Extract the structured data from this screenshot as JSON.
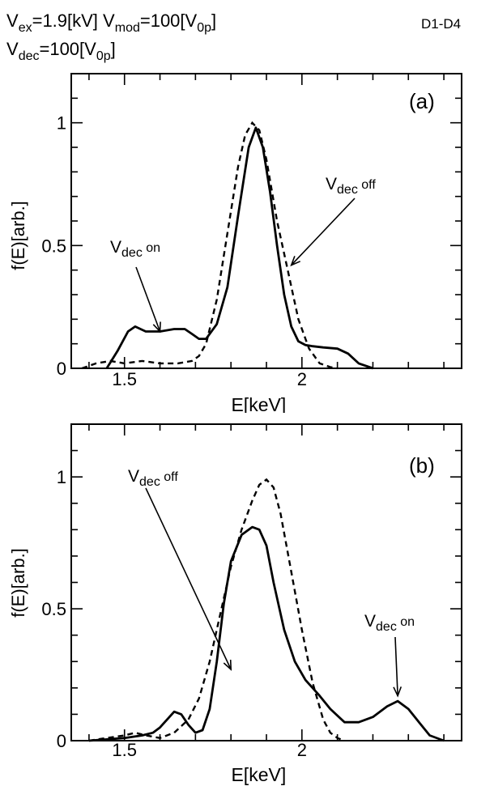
{
  "header": {
    "line1": [
      {
        "t": "V",
        "sub": "ex",
        "rest": "=1.9[kV] "
      },
      {
        "t": "V",
        "sub": "mod",
        "rest": "=100[V"
      },
      {
        "t": "",
        "sub": "0p",
        "rest": "]"
      }
    ],
    "line2": [
      {
        "t": "V",
        "sub": "dec",
        "rest": "=100[V"
      },
      {
        "t": "",
        "sub": "0p",
        "rest": "]"
      }
    ],
    "tag": "D1-D4"
  },
  "chart_data": [
    {
      "type": "line",
      "panel_label": "(a)",
      "xlabel": "E[keV]",
      "ylabel": "f(E)[arb.]",
      "xlim": [
        1.35,
        2.45
      ],
      "ylim": [
        0,
        1.2
      ],
      "xticks": [
        1.5,
        2
      ],
      "yticks": [
        0,
        0.5,
        1
      ],
      "ytick_labels": [
        "0",
        "0.5",
        "1"
      ],
      "series": [
        {
          "name": "Vdec on",
          "style": "solid",
          "x": [
            1.45,
            1.48,
            1.51,
            1.53,
            1.56,
            1.6,
            1.64,
            1.67,
            1.69,
            1.71,
            1.73,
            1.76,
            1.79,
            1.82,
            1.85,
            1.87,
            1.89,
            1.91,
            1.93,
            1.95,
            1.97,
            1.99,
            2.01,
            2.03,
            2.06,
            2.1,
            2.13,
            2.16,
            2.2
          ],
          "y": [
            0,
            0.07,
            0.15,
            0.17,
            0.15,
            0.15,
            0.16,
            0.16,
            0.14,
            0.12,
            0.12,
            0.18,
            0.33,
            0.62,
            0.9,
            0.98,
            0.9,
            0.72,
            0.5,
            0.3,
            0.17,
            0.11,
            0.095,
            0.09,
            0.085,
            0.08,
            0.06,
            0.02,
            0
          ]
        },
        {
          "name": "Vdec off",
          "style": "dashed",
          "x": [
            1.38,
            1.42,
            1.46,
            1.5,
            1.55,
            1.6,
            1.65,
            1.69,
            1.71,
            1.73,
            1.76,
            1.79,
            1.82,
            1.84,
            1.86,
            1.88,
            1.9,
            1.93,
            1.96,
            1.99,
            2.02,
            2.05,
            2.08,
            2.1
          ],
          "y": [
            0,
            0.02,
            0.03,
            0.02,
            0.03,
            0.02,
            0.02,
            0.03,
            0.05,
            0.1,
            0.28,
            0.55,
            0.82,
            0.95,
            1.0,
            0.97,
            0.85,
            0.6,
            0.4,
            0.2,
            0.08,
            0.02,
            0.005,
            0
          ]
        }
      ],
      "annotations": [
        {
          "base": "V",
          "sub": "dec",
          "suffix": " on",
          "target": [
            1.6,
            0.15
          ]
        },
        {
          "base": "V",
          "sub": "dec",
          "suffix": " off",
          "target": [
            1.97,
            0.42
          ]
        }
      ]
    },
    {
      "type": "line",
      "panel_label": "(b)",
      "xlabel": "E[keV]",
      "ylabel": "f(E)[arb.]",
      "xlim": [
        1.35,
        2.45
      ],
      "ylim": [
        0,
        1.2
      ],
      "xticks": [
        1.5,
        2
      ],
      "yticks": [
        0,
        0.5,
        1
      ],
      "ytick_labels": [
        "0",
        "0.5",
        "1"
      ],
      "series": [
        {
          "name": "Vdec on",
          "style": "solid",
          "x": [
            1.4,
            1.45,
            1.5,
            1.55,
            1.58,
            1.6,
            1.62,
            1.64,
            1.66,
            1.68,
            1.7,
            1.72,
            1.74,
            1.76,
            1.78,
            1.8,
            1.83,
            1.86,
            1.88,
            1.9,
            1.92,
            1.95,
            1.98,
            2.01,
            2.03,
            2.05,
            2.08,
            2.12,
            2.16,
            2.2,
            2.24,
            2.27,
            2.3,
            2.33,
            2.36,
            2.4
          ],
          "y": [
            0,
            0.005,
            0.01,
            0.02,
            0.03,
            0.05,
            0.08,
            0.11,
            0.1,
            0.06,
            0.03,
            0.04,
            0.12,
            0.3,
            0.52,
            0.68,
            0.78,
            0.81,
            0.8,
            0.74,
            0.6,
            0.42,
            0.3,
            0.23,
            0.2,
            0.17,
            0.12,
            0.07,
            0.07,
            0.09,
            0.13,
            0.15,
            0.12,
            0.07,
            0.02,
            0
          ]
        },
        {
          "name": "Vdec off",
          "style": "dashed",
          "x": [
            1.4,
            1.45,
            1.5,
            1.53,
            1.56,
            1.6,
            1.64,
            1.68,
            1.71,
            1.74,
            1.77,
            1.8,
            1.83,
            1.86,
            1.88,
            1.9,
            1.92,
            1.94,
            1.97,
            2.0,
            2.03,
            2.06,
            2.08,
            2.1,
            2.12
          ],
          "y": [
            0,
            0.01,
            0.02,
            0.03,
            0.02,
            0.01,
            0.03,
            0.08,
            0.16,
            0.3,
            0.48,
            0.66,
            0.8,
            0.91,
            0.97,
            0.99,
            0.96,
            0.86,
            0.64,
            0.42,
            0.22,
            0.08,
            0.03,
            0.01,
            0
          ]
        }
      ],
      "annotations": [
        {
          "base": "V",
          "sub": "dec",
          "suffix": " off",
          "target": [
            1.8,
            0.27
          ]
        },
        {
          "base": "V",
          "sub": "dec",
          "suffix": " on",
          "target": [
            2.27,
            0.17
          ]
        }
      ]
    }
  ]
}
